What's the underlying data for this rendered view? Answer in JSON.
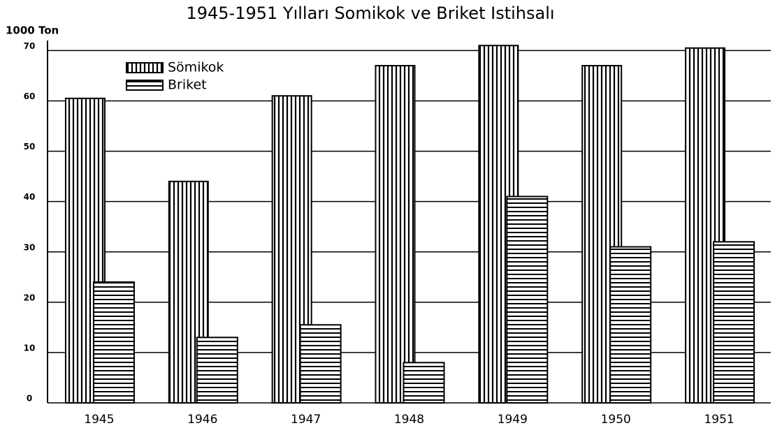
{
  "chart_data": {
    "type": "bar",
    "title": "1945-1951 Yılları Somikok ve Briket Istihsalı",
    "y_axis_label": "1000 Ton",
    "categories": [
      "1945",
      "1946",
      "1947",
      "1948",
      "1949",
      "1950",
      "1951"
    ],
    "series": [
      {
        "name": "Sömikok",
        "color": "#000000",
        "pattern": "vertical",
        "values": [
          60.5,
          44,
          61,
          67,
          71,
          67,
          70.5
        ]
      },
      {
        "name": "Briket",
        "color": "#000000",
        "pattern": "horizontal",
        "values": [
          24,
          13,
          15.5,
          8,
          41,
          31,
          32
        ]
      }
    ],
    "ylim": [
      0,
      72
    ],
    "yticks": [
      0,
      10,
      20,
      30,
      40,
      50,
      60,
      70
    ],
    "grid": true,
    "legend": "upper left"
  }
}
